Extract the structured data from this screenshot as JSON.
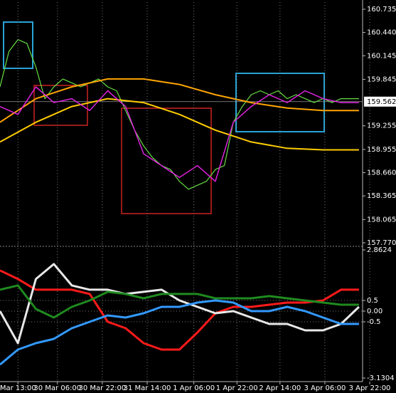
{
  "chart_data": [
    {
      "type": "line",
      "xlim": [
        0,
        100
      ],
      "ylim": [
        157.77,
        160.735
      ],
      "yticks": [
        160.735,
        {
          "value": 160.44,
          "label": "160.440"
        },
        160.145,
        159.845,
        159.255,
        158.955,
        {
          "value": 158.66,
          "label": "158.660"
        },
        158.365,
        158.065,
        {
          "value": 157.77,
          "label": "157.770"
        }
      ],
      "last_price": 159.562,
      "grid": true,
      "series": [
        {
          "color": "#66dd44",
          "x": [
            0,
            2.5,
            5,
            7.5,
            10,
            12.5,
            15,
            17.5,
            20,
            22.5,
            25,
            27.5,
            30,
            32.5,
            35,
            37.5,
            40,
            42.5,
            45,
            47.5,
            50,
            52.5,
            55,
            57.5,
            60,
            62.5,
            65,
            67.5,
            70,
            72.5,
            75,
            77.5,
            80,
            82.5,
            85,
            87.5,
            90,
            92.5,
            95,
            97.5,
            100
          ],
          "values": [
            159.75,
            160.2,
            160.35,
            160.3,
            160.0,
            159.6,
            159.75,
            159.85,
            159.8,
            159.75,
            159.8,
            159.85,
            159.75,
            159.7,
            159.45,
            159.2,
            159.0,
            158.85,
            158.75,
            158.7,
            158.55,
            158.45,
            158.5,
            158.55,
            158.7,
            158.75,
            159.3,
            159.5,
            159.65,
            159.7,
            159.65,
            159.7,
            159.6,
            159.65,
            159.6,
            159.55,
            159.6,
            159.55,
            159.6,
            159.6,
            159.6
          ]
        },
        {
          "color": "#ffcc00",
          "x": [
            0,
            10,
            20,
            30,
            40,
            50,
            60,
            70,
            80,
            90,
            100
          ],
          "values": [
            159.05,
            159.3,
            159.5,
            159.6,
            159.55,
            159.4,
            159.2,
            159.05,
            158.97,
            158.95,
            158.95
          ]
        },
        {
          "color": "#ffa500",
          "x": [
            0,
            10,
            20,
            30,
            40,
            50,
            60,
            70,
            80,
            90,
            100
          ],
          "values": [
            159.3,
            159.6,
            159.75,
            159.85,
            159.85,
            159.78,
            159.65,
            159.55,
            159.48,
            159.45,
            159.45
          ]
        },
        {
          "color": "#dd22dd",
          "x": [
            0,
            5,
            10,
            15,
            20,
            25,
            30,
            35,
            40,
            45,
            50,
            55,
            60,
            65,
            70,
            75,
            80,
            85,
            90,
            95,
            100
          ],
          "values": [
            159.5,
            159.4,
            159.75,
            159.55,
            159.6,
            159.45,
            159.7,
            159.5,
            158.9,
            158.75,
            158.6,
            158.75,
            158.55,
            159.3,
            159.5,
            159.65,
            159.55,
            159.7,
            159.6,
            159.55,
            159.55
          ]
        }
      ]
    },
    {
      "type": "line",
      "xlim": [
        0,
        100
      ],
      "ylim": [
        -3.1304,
        2.8624
      ],
      "yticks": [
        2.8624,
        0.5,
        {
          "value": 0,
          "label": "0.00"
        },
        -0.5,
        -3.1304
      ],
      "xticks": [
        {
          "value": 5,
          "label": "Mar 13:00"
        },
        {
          "value": 16,
          "label": "30 Mar 06:00"
        },
        {
          "value": 28.5,
          "label": "30 Mar 22:00"
        },
        {
          "value": 41,
          "label": "31 Mar 14:00"
        },
        {
          "value": 54,
          "label": "1 Apr 06:00"
        },
        {
          "value": 66,
          "label": "1 Apr 22:00"
        },
        {
          "value": 78,
          "label": "2 Apr 14:00"
        },
        {
          "value": 90.5,
          "label": "3 Apr 06:00"
        },
        {
          "value": 103,
          "label": "3 Apr 22:00"
        }
      ],
      "series": [
        {
          "color": "#ff1a1a",
          "x": [
            0,
            5,
            10,
            15,
            20,
            25,
            30,
            35,
            40,
            45,
            50,
            55,
            60,
            65,
            70,
            75,
            80,
            85,
            90,
            95,
            100
          ],
          "values": [
            1.9,
            1.5,
            1.0,
            1.0,
            1.0,
            0.8,
            -0.5,
            -0.8,
            -1.5,
            -1.8,
            -1.8,
            -1.0,
            -0.1,
            0.2,
            0.2,
            0.3,
            0.4,
            0.4,
            0.5,
            1.0,
            1.0
          ]
        },
        {
          "color": "#e8e8e8",
          "x": [
            0,
            5,
            10,
            15,
            20,
            25,
            30,
            35,
            40,
            45,
            50,
            55,
            60,
            65,
            70,
            75,
            80,
            85,
            90,
            95,
            100
          ],
          "values": [
            0,
            -1.5,
            1.5,
            2.2,
            1.2,
            1.0,
            1.0,
            0.8,
            0.9,
            1.0,
            0.5,
            0.2,
            -0.1,
            0.0,
            -0.3,
            -0.6,
            -0.6,
            -0.9,
            -0.9,
            -0.6,
            0.2
          ]
        },
        {
          "color": "#1f8a1f",
          "x": [
            0,
            5,
            10,
            15,
            20,
            25,
            30,
            35,
            40,
            45,
            50,
            55,
            60,
            65,
            70,
            75,
            80,
            85,
            90,
            95,
            100
          ],
          "values": [
            1.0,
            1.2,
            0.1,
            -0.3,
            0.2,
            0.5,
            0.9,
            0.8,
            0.6,
            0.8,
            0.8,
            0.8,
            0.6,
            0.6,
            0.6,
            0.7,
            0.6,
            0.5,
            0.4,
            0.3,
            0.3
          ]
        },
        {
          "color": "#3399ff",
          "x": [
            0,
            5,
            10,
            15,
            20,
            25,
            30,
            35,
            40,
            45,
            50,
            55,
            60,
            65,
            70,
            75,
            80,
            85,
            90,
            95,
            100
          ],
          "values": [
            -2.5,
            -1.8,
            -1.5,
            -1.3,
            -0.8,
            -0.5,
            -0.2,
            -0.3,
            -0.1,
            0.2,
            0.2,
            0.4,
            0.5,
            0.4,
            0.0,
            0.0,
            0.2,
            0.0,
            -0.3,
            -0.6,
            -0.6
          ]
        }
      ]
    }
  ]
}
